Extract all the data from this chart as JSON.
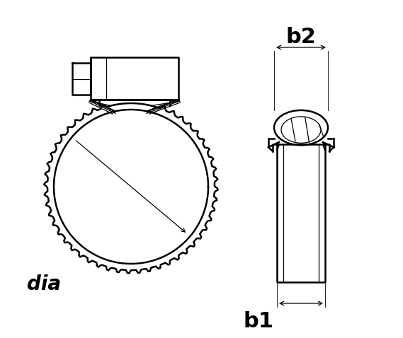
{
  "bg_color": "#ffffff",
  "line_color": "#000000",
  "fig_width": 5.5,
  "fig_height": 4.47,
  "label_dia": "dia",
  "label_b1": "b1",
  "label_b2": "b2",
  "lw_main": 1.8,
  "lw_thin": 0.9,
  "lw_xtra": 0.6
}
